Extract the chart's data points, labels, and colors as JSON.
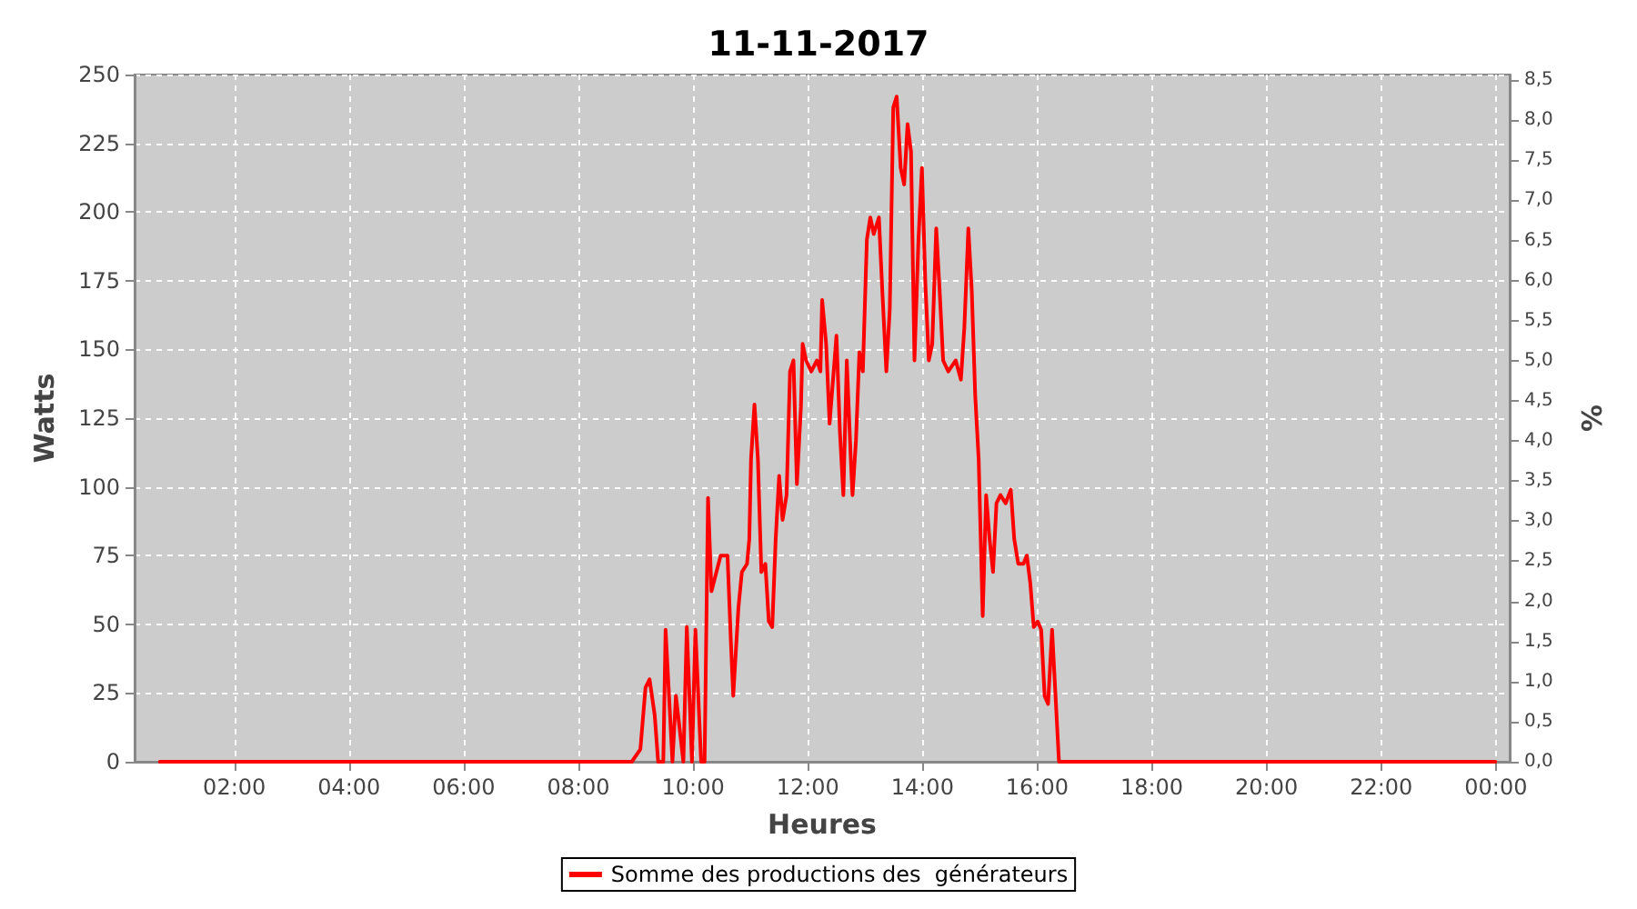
{
  "chart_data": {
    "type": "line",
    "title": "11-11-2017",
    "xlabel": "Heures",
    "ylabel": "Watts",
    "y2label": "%",
    "x": [
      0.7,
      1.5,
      2.5,
      3.5,
      4.5,
      5.5,
      6.5,
      7.5,
      8.5,
      8.93,
      9.08,
      9.17,
      9.24,
      9.33,
      9.39,
      9.48,
      9.52,
      9.64,
      9.7,
      9.83,
      9.89,
      9.98,
      10.04,
      10.14,
      10.2,
      10.26,
      10.32,
      10.48,
      10.6,
      10.66,
      10.7,
      10.79,
      10.85,
      10.94,
      10.98,
      11.01,
      11.07,
      11.13,
      11.19,
      11.26,
      11.32,
      11.38,
      11.44,
      11.5,
      11.56,
      11.63,
      11.69,
      11.75,
      11.81,
      11.88,
      11.91,
      11.97,
      12.06,
      12.16,
      12.22,
      12.25,
      12.32,
      12.38,
      12.44,
      12.5,
      12.56,
      12.62,
      12.68,
      12.75,
      12.78,
      12.84,
      12.9,
      12.96,
      13.03,
      13.09,
      13.15,
      13.24,
      13.3,
      13.37,
      13.43,
      13.49,
      13.55,
      13.62,
      13.68,
      13.74,
      13.8,
      13.86,
      13.93,
      13.99,
      14.05,
      14.11,
      14.17,
      14.24,
      14.3,
      14.36,
      14.45,
      14.58,
      14.67,
      14.73,
      14.8,
      14.86,
      14.92,
      14.98,
      15.05,
      15.11,
      15.17,
      15.23,
      15.29,
      15.36,
      15.45,
      15.54,
      15.6,
      15.67,
      15.76,
      15.82,
      15.88,
      15.94,
      16.01,
      16.07,
      16.13,
      16.19,
      16.26,
      16.32,
      16.38,
      16.69,
      18,
      20,
      22,
      23.99
    ],
    "series": [
      {
        "name": "Somme des productions des  générateurs",
        "color": "#ff0000",
        "values": [
          0,
          0,
          0,
          0,
          0,
          0,
          0,
          0,
          0,
          0,
          4.5,
          27,
          30,
          17,
          0,
          0,
          48,
          0,
          24,
          0,
          49,
          0,
          48,
          0,
          0,
          96,
          62,
          75,
          75,
          43,
          24,
          56,
          69,
          72,
          81,
          110,
          130,
          110,
          69,
          72,
          51,
          49,
          81,
          104,
          88,
          97,
          142,
          146,
          101,
          129,
          152,
          146,
          142,
          146,
          142,
          168,
          152,
          123,
          139,
          155,
          120,
          97,
          146,
          110,
          97,
          117,
          149,
          142,
          190,
          198,
          192,
          198,
          171,
          142,
          165,
          238,
          242,
          216,
          210,
          232,
          222,
          146,
          190,
          216,
          174,
          146,
          152,
          194,
          171,
          146,
          142,
          146,
          139,
          158,
          194,
          171,
          133,
          110,
          53,
          97,
          81,
          69,
          94,
          97,
          94,
          99,
          81,
          72,
          72,
          75,
          65,
          49,
          51,
          48,
          24,
          21,
          48,
          24,
          0,
          0,
          0,
          0,
          0,
          0
        ]
      }
    ],
    "xlim": [
      0.26,
      24.24
    ],
    "xticks": [
      {
        "value": 2,
        "label": "02:00"
      },
      {
        "value": 4,
        "label": "04:00"
      },
      {
        "value": 6,
        "label": "06:00"
      },
      {
        "value": 8,
        "label": "08:00"
      },
      {
        "value": 10,
        "label": "10:00"
      },
      {
        "value": 12,
        "label": "12:00"
      },
      {
        "value": 14,
        "label": "14:00"
      },
      {
        "value": 16,
        "label": "16:00"
      },
      {
        "value": 18,
        "label": "18:00"
      },
      {
        "value": 20,
        "label": "20:00"
      },
      {
        "value": 22,
        "label": "22:00"
      },
      {
        "value": 24,
        "label": "00:00"
      }
    ],
    "ylim": [
      0,
      250
    ],
    "yticks": [
      0,
      25,
      50,
      75,
      100,
      125,
      150,
      175,
      200,
      225,
      250
    ],
    "y2lim": [
      0,
      8.57
    ],
    "y2ticks": [
      {
        "value": 0,
        "label": "0,0"
      },
      {
        "value": 0.5,
        "label": "0,5"
      },
      {
        "value": 1,
        "label": "1,0"
      },
      {
        "value": 1.5,
        "label": "1,5"
      },
      {
        "value": 2,
        "label": "2,0"
      },
      {
        "value": 2.5,
        "label": "2,5"
      },
      {
        "value": 3,
        "label": "3,0"
      },
      {
        "value": 3.5,
        "label": "3,5"
      },
      {
        "value": 4,
        "label": "4,0"
      },
      {
        "value": 4.5,
        "label": "4,5"
      },
      {
        "value": 5,
        "label": "5,0"
      },
      {
        "value": 5.5,
        "label": "5,5"
      },
      {
        "value": 6,
        "label": "6,0"
      },
      {
        "value": 6.5,
        "label": "6,5"
      },
      {
        "value": 7,
        "label": "7,0"
      },
      {
        "value": 7.5,
        "label": "7,5"
      },
      {
        "value": 8,
        "label": "8,0"
      },
      {
        "value": 8.5,
        "label": "8,5"
      }
    ],
    "grid": true,
    "legend": "bottom",
    "marker": "none",
    "line_style": "solid"
  }
}
